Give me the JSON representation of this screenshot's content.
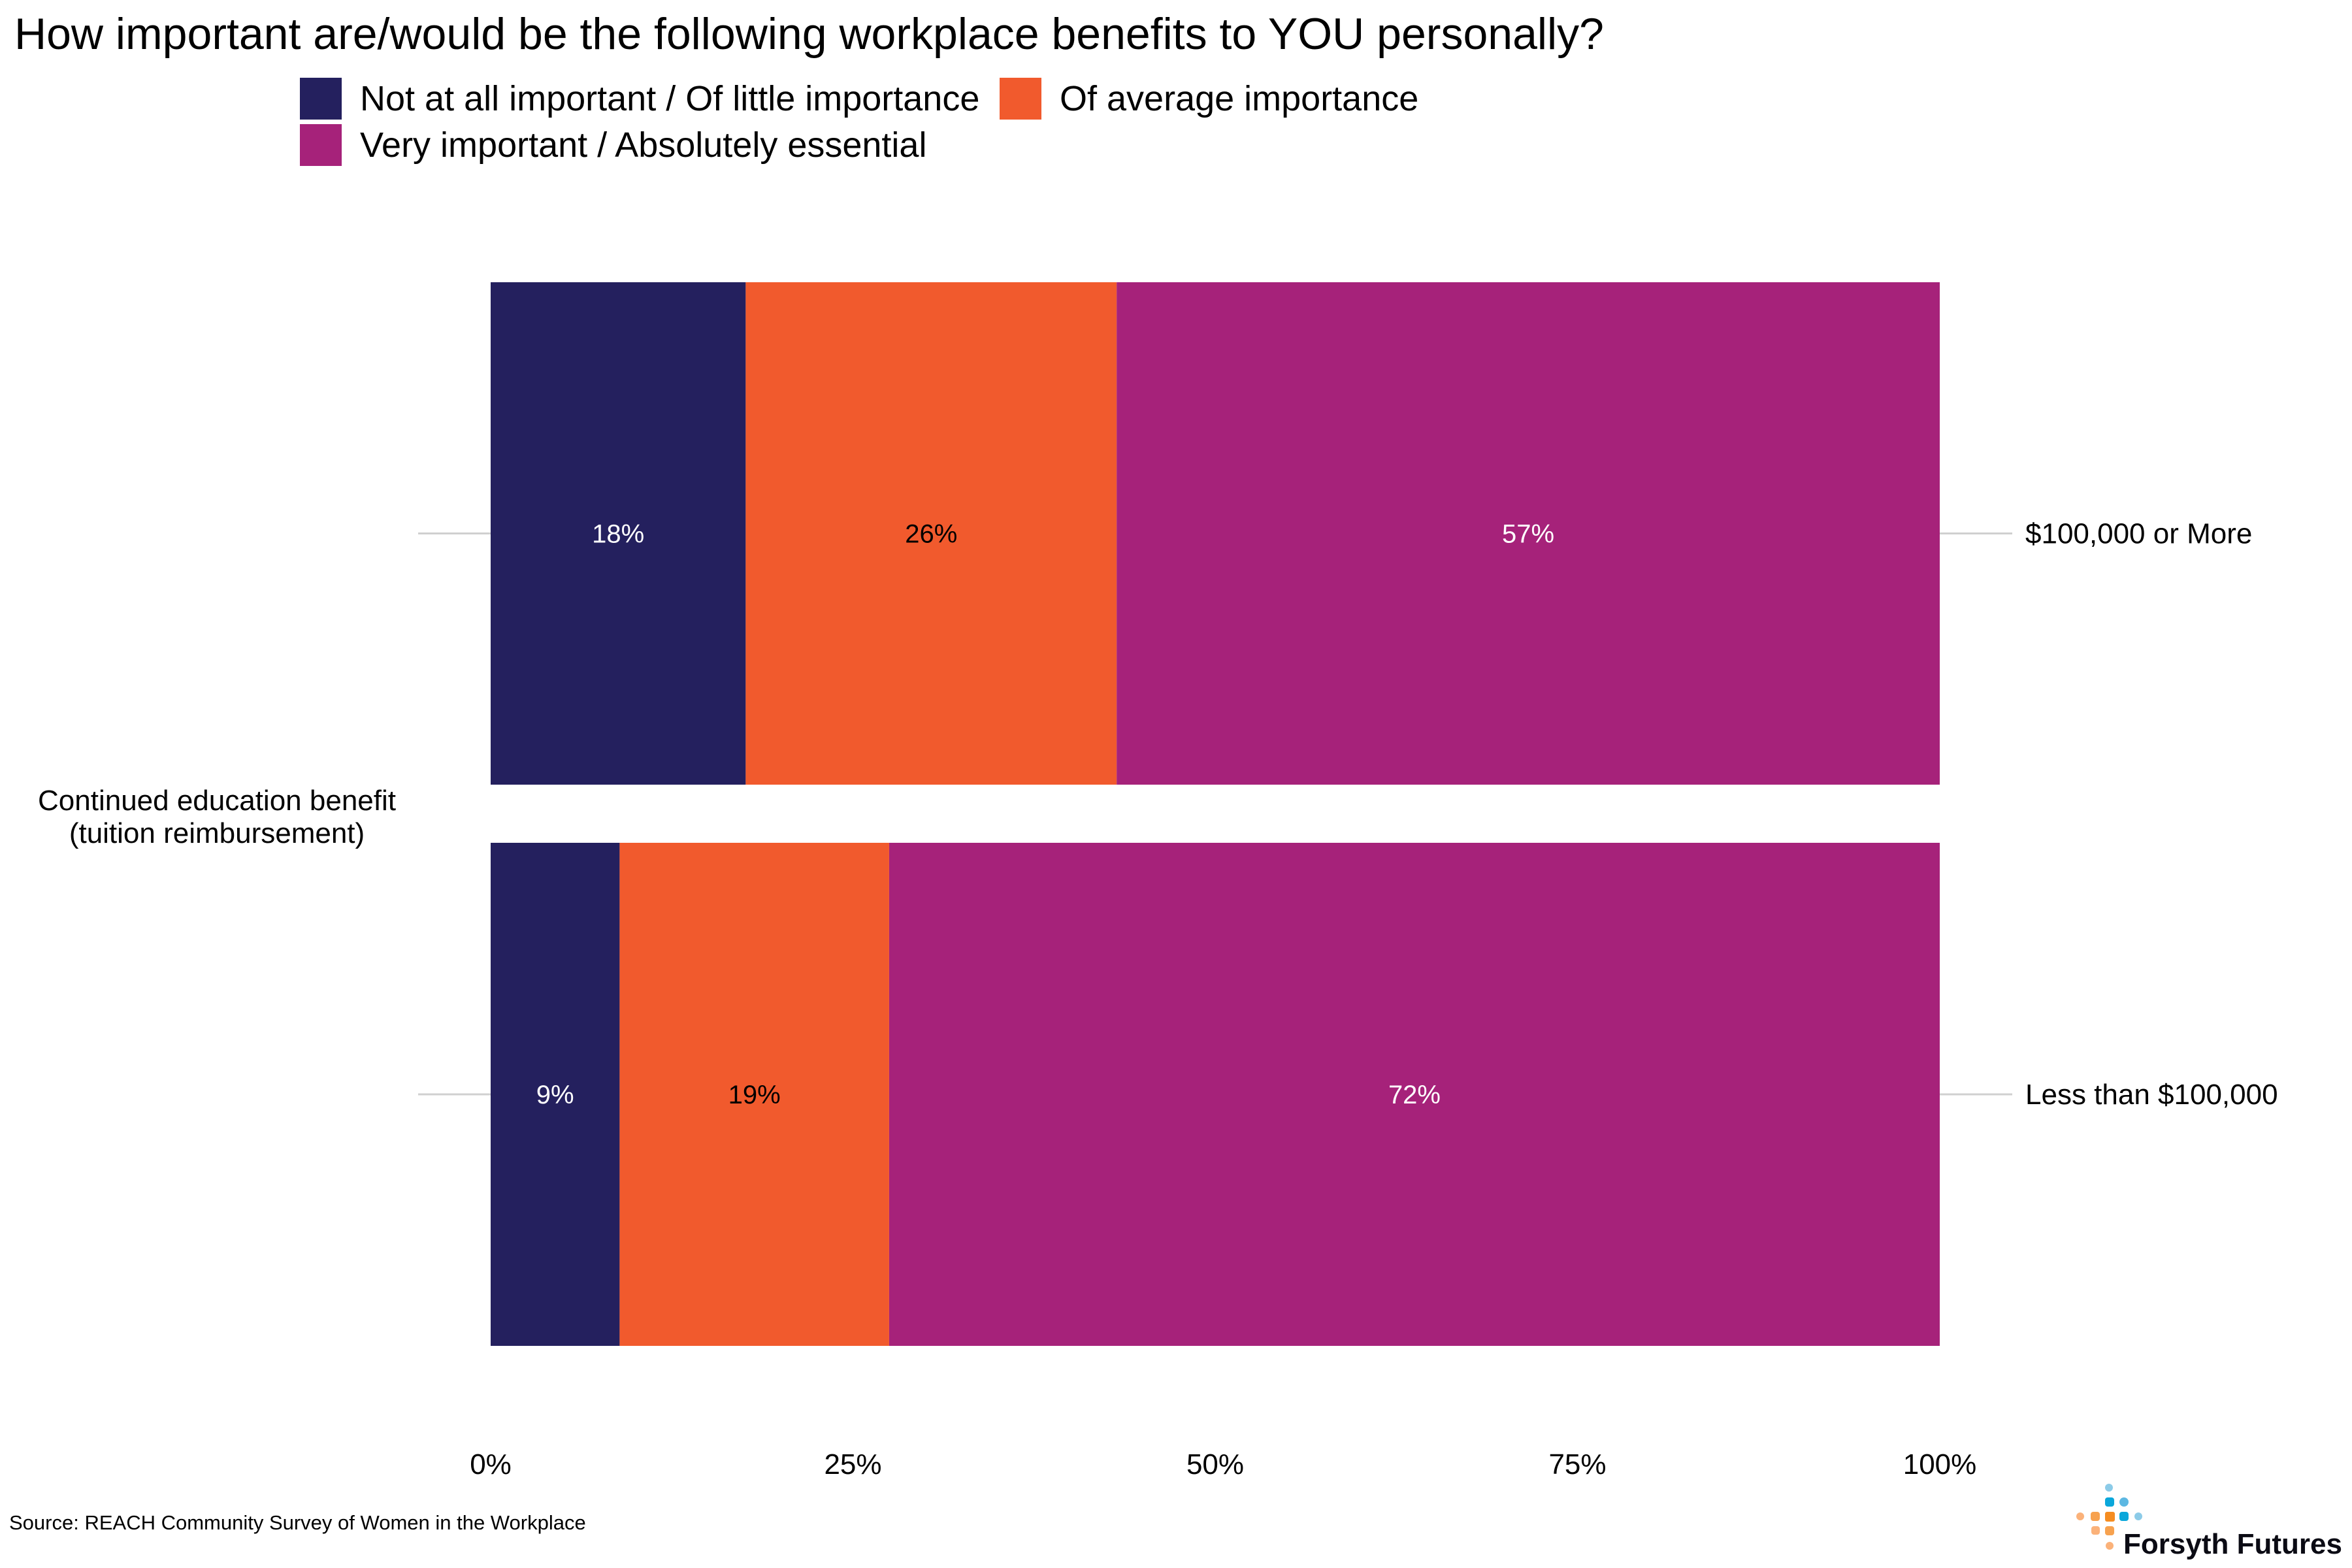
{
  "chart_data": {
    "type": "bar",
    "orientation": "horizontal",
    "stacked": true,
    "title": "How important are/would be the following workplace benefits to YOU personally?",
    "category_label": "Continued education benefit\n(tuition reimbursement)",
    "categories": [
      "$100,000 or More",
      "Less than $100,000"
    ],
    "series": [
      {
        "name": "Not at all important / Of little importance",
        "color": "#24205E",
        "values": [
          17.6,
          8.9
        ],
        "labels": [
          "18%",
          "9%"
        ],
        "label_color": "#ffffff"
      },
      {
        "name": "Of average importance",
        "color": "#F15A2D",
        "values": [
          25.6,
          18.6
        ],
        "labels": [
          "26%",
          "19%"
        ],
        "label_color": "#000000"
      },
      {
        "name": "Very important / Absolutely essential",
        "color": "#A6227A",
        "values": [
          56.8,
          72.5
        ],
        "labels": [
          "57%",
          "72%"
        ],
        "label_color": "#ffffff"
      }
    ],
    "xlim": [
      0,
      100
    ],
    "xticks": [
      "0%",
      "25%",
      "50%",
      "75%",
      "100%"
    ],
    "grid": false,
    "legend_position": "top"
  },
  "source": "Source: REACH Community Survey of Women in the Workplace",
  "logo": {
    "text": "Forsyth Futures"
  }
}
